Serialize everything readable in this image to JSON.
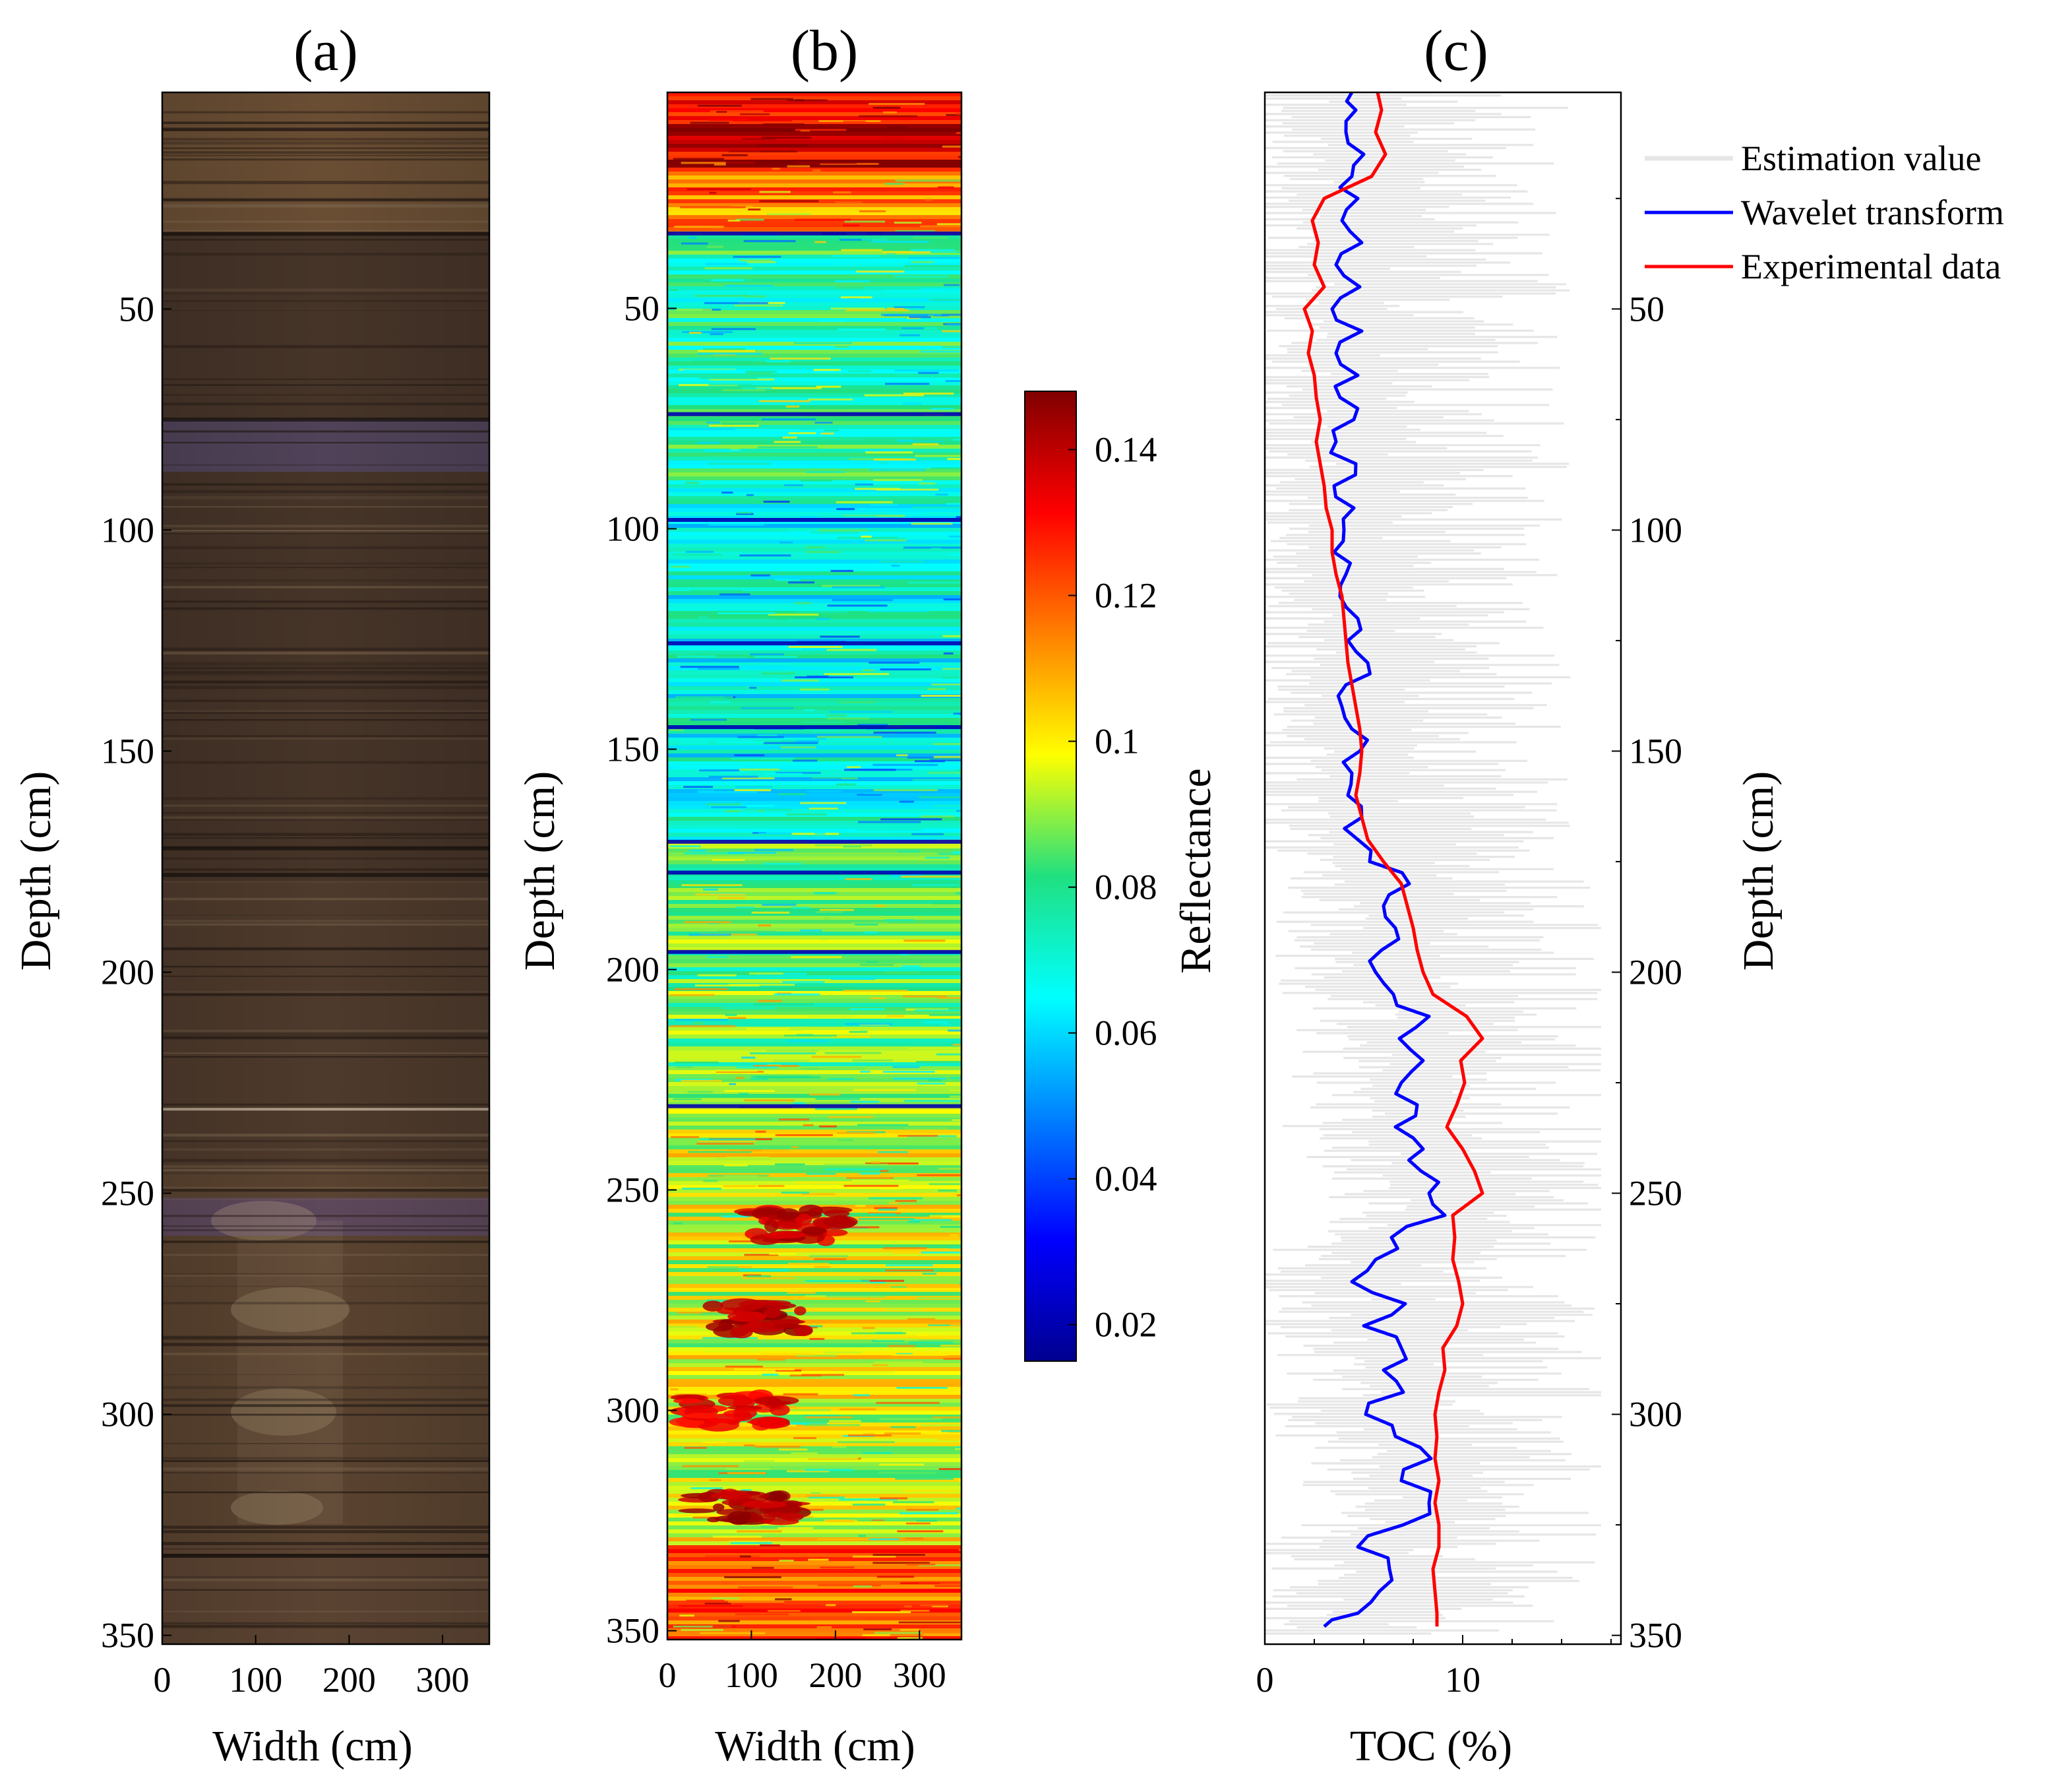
{
  "figure": {
    "panels": [
      "(a)",
      "(b)",
      "(c)"
    ]
  },
  "colors": {
    "core_brown": "#5b4630",
    "core_dark": "#3a2e24",
    "legend_estimation": "#e6e6e6",
    "legend_wavelet": "#0000ff",
    "legend_experimental": "#ff0000"
  },
  "chart_data": [
    {
      "panel": "(a)",
      "type": "image",
      "title": "(a)",
      "xlabel": "Width (cm)",
      "ylabel": "Depth (cm)",
      "xlim": [
        0,
        350
      ],
      "ylim": [
        1,
        352
      ],
      "xticks": [
        "0",
        "100",
        "200",
        "300"
      ],
      "yticks": [
        "50",
        "100",
        "150",
        "200",
        "250",
        "300",
        "350"
      ],
      "xtick_values": [
        0,
        100,
        200,
        300
      ],
      "ytick_values": [
        50,
        100,
        150,
        200,
        250,
        300,
        350
      ],
      "features": [
        {
          "depth": 33,
          "type": "boundary"
        },
        {
          "depth": 75,
          "type": "dark-line"
        },
        {
          "depth": 81,
          "type": "purple-band"
        },
        {
          "depth": 172,
          "type": "dark-line"
        },
        {
          "depth": 178,
          "type": "boundary"
        },
        {
          "depth": 231,
          "type": "light-line"
        },
        {
          "depth": 256,
          "type": "purple-band"
        },
        {
          "depth": 332,
          "type": "dark-line"
        }
      ]
    },
    {
      "panel": "(b)",
      "type": "heatmap",
      "title": "(b)",
      "xlabel": "Width (cm)",
      "ylabel": "Depth (cm)",
      "xlim": [
        0,
        350
      ],
      "ylim": [
        1,
        352
      ],
      "xticks": [
        "0",
        "100",
        "200",
        "300"
      ],
      "yticks": [
        "50",
        "100",
        "150",
        "200",
        "250",
        "300",
        "350"
      ],
      "xtick_values": [
        0,
        100,
        200,
        300
      ],
      "ytick_values": [
        50,
        100,
        150,
        200,
        250,
        300,
        350
      ],
      "colorbar": {
        "label": "Reflectance",
        "range": [
          0.015,
          0.148
        ],
        "ticks": [
          "0.02",
          "0.04",
          "0.06",
          "0.08",
          "0.1",
          "0.12",
          "0.14"
        ],
        "tick_values": [
          0.02,
          0.04,
          0.06,
          0.08,
          0.1,
          0.12,
          0.14
        ],
        "colormap": "jet"
      },
      "zones": [
        {
          "from": 1,
          "to": 18,
          "value": 0.135
        },
        {
          "from": 18,
          "to": 33,
          "value": 0.115
        },
        {
          "from": 33,
          "to": 90,
          "value": 0.076
        },
        {
          "from": 90,
          "to": 170,
          "value": 0.068
        },
        {
          "from": 170,
          "to": 230,
          "value": 0.084
        },
        {
          "from": 230,
          "to": 330,
          "value": 0.096
        },
        {
          "from": 330,
          "to": 352,
          "value": 0.118
        }
      ],
      "dark_lines": [
        33,
        74,
        98,
        126,
        145,
        171,
        178,
        196,
        231
      ],
      "hot_spots": [
        {
          "x": 150,
          "depth": 258,
          "value": 0.145
        },
        {
          "x": 110,
          "depth": 279,
          "value": 0.148
        },
        {
          "x": 80,
          "depth": 300,
          "value": 0.14
        },
        {
          "x": 90,
          "depth": 322,
          "value": 0.148
        }
      ]
    },
    {
      "panel": "(c)",
      "type": "line",
      "title": "(c)",
      "xlabel": "TOC (%)",
      "ylabel_left": "Reflectance",
      "ylabel": "Depth (cm)",
      "xlim": [
        0,
        18
      ],
      "ylim": [
        1,
        352
      ],
      "xticks": [
        "0",
        "10"
      ],
      "yticks": [
        "50",
        "100",
        "150",
        "200",
        "250",
        "300",
        "350"
      ],
      "xtick_values": [
        0,
        10
      ],
      "ytick_values": [
        50,
        100,
        150,
        200,
        250,
        300,
        350
      ],
      "legend": [
        "Estimation value",
        "Wavelet transform",
        "Experimental data"
      ],
      "legend_position": "outside-top-right",
      "series": [
        {
          "name": "Estimation value",
          "color": "#e6e6e6",
          "depth_range": [
            1,
            350
          ],
          "mean_range": [
            3,
            9
          ],
          "spread_min": 0,
          "spread_max": 17
        },
        {
          "name": "Wavelet transform",
          "color": "#0000ff",
          "depth": [
            1,
            5,
            10,
            15,
            20,
            25,
            30,
            35,
            40,
            45,
            50,
            55,
            60,
            65,
            70,
            75,
            80,
            85,
            90,
            95,
            100,
            105,
            110,
            115,
            120,
            125,
            130,
            135,
            140,
            145,
            150,
            155,
            160,
            165,
            170,
            175,
            180,
            185,
            190,
            195,
            200,
            205,
            210,
            215,
            220,
            225,
            230,
            235,
            240,
            245,
            250,
            255,
            260,
            265,
            270,
            275,
            280,
            285,
            290,
            295,
            300,
            305,
            310,
            315,
            320,
            325,
            330,
            335,
            340,
            345,
            348
          ],
          "toc": [
            4.4,
            4.6,
            4.1,
            5.0,
            4.4,
            4.7,
            3.9,
            4.9,
            3.6,
            4.8,
            3.4,
            4.9,
            3.6,
            4.7,
            3.8,
            4.5,
            3.6,
            4.6,
            3.5,
            4.5,
            4.0,
            3.5,
            4.1,
            3.8,
            4.7,
            4.2,
            5.2,
            4.1,
            3.9,
            4.4,
            4.8,
            4.4,
            4.2,
            4.9,
            4.7,
            5.3,
            7.3,
            6.0,
            6.6,
            5.9,
            5.6,
            6.5,
            8.3,
            6.8,
            8.0,
            6.9,
            7.7,
            6.6,
            8.0,
            7.9,
            8.3,
            9.1,
            6.4,
            5.6,
            4.4,
            7.1,
            5.0,
            6.9,
            6.0,
            7.0,
            5.1,
            6.6,
            8.4,
            6.9,
            8.3,
            7.0,
            4.7,
            6.3,
            5.8,
            4.7,
            3.0
          ]
        },
        {
          "name": "Experimental data",
          "color": "#ff0000",
          "depth": [
            1,
            5,
            10,
            15,
            20,
            25,
            30,
            35,
            40,
            45,
            50,
            55,
            60,
            65,
            70,
            75,
            80,
            85,
            90,
            95,
            100,
            105,
            110,
            115,
            120,
            125,
            130,
            135,
            140,
            145,
            150,
            155,
            160,
            165,
            170,
            175,
            180,
            185,
            190,
            195,
            200,
            205,
            210,
            215,
            220,
            225,
            230,
            235,
            240,
            245,
            250,
            255,
            260,
            265,
            270,
            275,
            280,
            285,
            290,
            295,
            300,
            305,
            310,
            315,
            320,
            325,
            330,
            335,
            340,
            345,
            348
          ],
          "toc": [
            5.7,
            5.9,
            5.6,
            6.1,
            5.4,
            3.0,
            2.4,
            2.7,
            2.5,
            3.0,
            2.0,
            2.4,
            2.2,
            2.5,
            2.6,
            2.8,
            2.6,
            2.8,
            3.0,
            3.1,
            3.4,
            3.4,
            3.6,
            3.9,
            4.0,
            4.1,
            4.2,
            4.4,
            4.6,
            4.8,
            4.9,
            4.8,
            4.6,
            4.9,
            5.2,
            6.0,
            6.9,
            7.2,
            7.5,
            7.7,
            8.0,
            8.5,
            10.2,
            11.0,
            9.9,
            10.1,
            9.7,
            9.2,
            10.0,
            10.6,
            11.0,
            9.5,
            9.6,
            9.5,
            9.8,
            10.0,
            9.7,
            9.0,
            9.1,
            8.8,
            8.6,
            8.7,
            8.6,
            8.8,
            8.6,
            8.8,
            8.8,
            8.5,
            8.6,
            8.7,
            8.7
          ]
        }
      ]
    }
  ]
}
